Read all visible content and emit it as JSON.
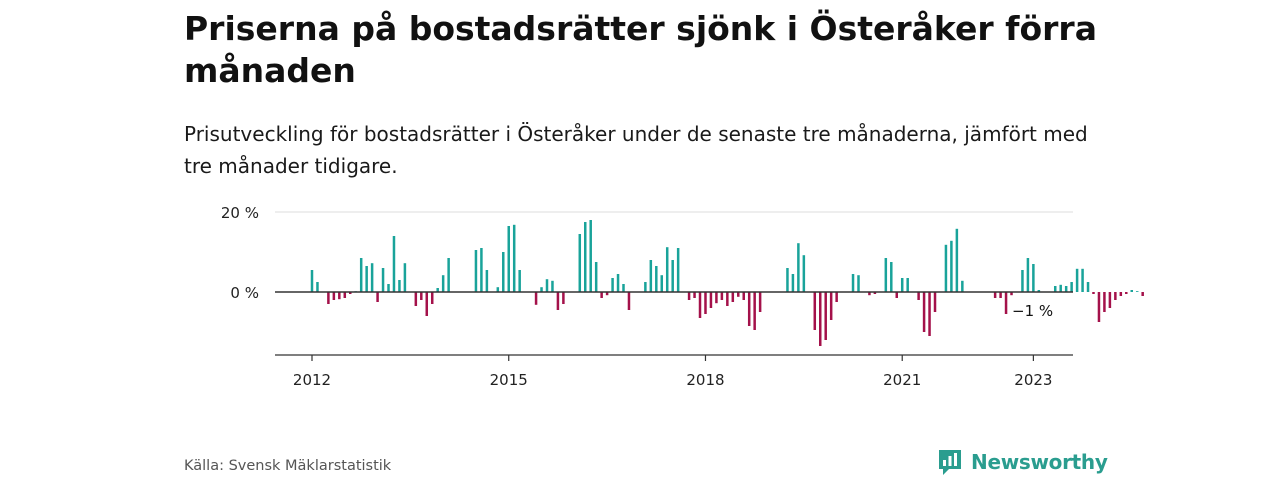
{
  "title": "Priserna på bostadsrätter sjönk i Österåker förra månaden",
  "subtitle": "Prisutveckling för bostadsrätter i Österåker under de senaste tre månaderna, jämfört med tre månader tidigare.",
  "source": "Källa: Svensk Mäklarstatistik",
  "brand": {
    "name": "Newsworthy",
    "icon": "newsworthy-logo-icon",
    "color": "#2a9d8f"
  },
  "colors": {
    "positive": "#19a39a",
    "negative": "#a4114a",
    "grid": "#dddddd",
    "axis": "#333333"
  },
  "chart_data": {
    "type": "bar",
    "x_start": "2012-01",
    "x_end": "2023-01",
    "x_ticks": [
      "2012",
      "2015",
      "2018",
      "2021",
      "2023"
    ],
    "y_ticks": [
      "20 %",
      "0 %"
    ],
    "ylim": [
      -16,
      21
    ],
    "grid": true,
    "end_label": "−1 %",
    "values": [
      5.5,
      2.5,
      0,
      -3,
      -2,
      -1.8,
      -1.5,
      -0.5,
      0.2,
      8.5,
      6.5,
      7.2,
      -2.5,
      6,
      2,
      14,
      3,
      7.2,
      0,
      -3.5,
      -2,
      -6,
      -3,
      1,
      4.2,
      8.5,
      0,
      0,
      0,
      0,
      10.5,
      11,
      5.5,
      0,
      1.2,
      10,
      16.5,
      16.8,
      5.5,
      0,
      0,
      -3.2,
      1.2,
      3.2,
      2.8,
      -4.5,
      -3,
      0,
      0,
      14.5,
      17.5,
      18,
      7.5,
      -1.5,
      -0.8,
      3.5,
      4.5,
      2,
      -4.5,
      0,
      0,
      2.5,
      8,
      6.5,
      4.2,
      11.2,
      8,
      11,
      0,
      -2,
      -1.5,
      -6.5,
      -5.5,
      -4,
      -2.8,
      -2,
      -3.5,
      -2.5,
      -1.2,
      -2,
      -8.5,
      -9.5,
      -5,
      0,
      0,
      0,
      0,
      6,
      4.5,
      12.2,
      9.2,
      0,
      -9.5,
      -13.5,
      -12,
      -7,
      -2.5,
      0,
      0,
      4.5,
      4.2,
      0,
      -0.8,
      -0.5,
      0,
      8.5,
      7.5,
      -1.5,
      3.5,
      3.5,
      0,
      -2,
      -10,
      -11,
      -5,
      0,
      11.8,
      12.8,
      15.8,
      2.8,
      0,
      0,
      0,
      0,
      0,
      -1.5,
      -1.5,
      -5.5,
      -0.8,
      0,
      5.5,
      8.5,
      7,
      0.5,
      0,
      0,
      1.5,
      1.8,
      1.5,
      2.5,
      5.8,
      5.8,
      2.5,
      -0.5,
      -7.5,
      -5,
      -4,
      -2,
      -1,
      -0.5,
      0.5,
      0.2,
      -1
    ]
  }
}
